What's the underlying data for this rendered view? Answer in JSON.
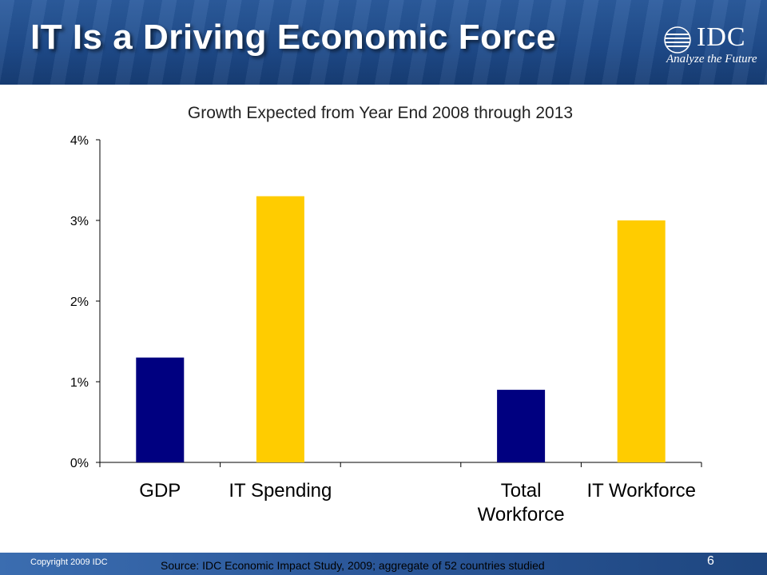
{
  "slide": {
    "title": "IT Is a Driving Economic Force",
    "logo_text": "IDC",
    "logo_tagline": "Analyze the Future",
    "copyright": "Copyright 2009 IDC",
    "source": "Source:  IDC Economic Impact Study, 2009; aggregate of 52 countries studied",
    "page_number": "6"
  },
  "colors": {
    "navy": "#000080",
    "gold": "#ffcc00",
    "axis": "#000000",
    "header": "#1f4c8c"
  },
  "chart_data": {
    "type": "bar",
    "title": "Growth Expected from Year End 2008 through 2013",
    "categories": [
      "GDP",
      "IT Spending",
      "",
      "Total\nWorkforce",
      "IT Workforce"
    ],
    "values": [
      1.3,
      3.3,
      null,
      0.9,
      3.0
    ],
    "bar_colors": [
      "#000080",
      "#ffcc00",
      null,
      "#000080",
      "#ffcc00"
    ],
    "y_ticks": [
      "0%",
      "1%",
      "2%",
      "3%",
      "4%"
    ],
    "ylim": [
      0,
      4
    ],
    "xlabel": "",
    "ylabel": "",
    "grid": false,
    "legend": "none"
  }
}
